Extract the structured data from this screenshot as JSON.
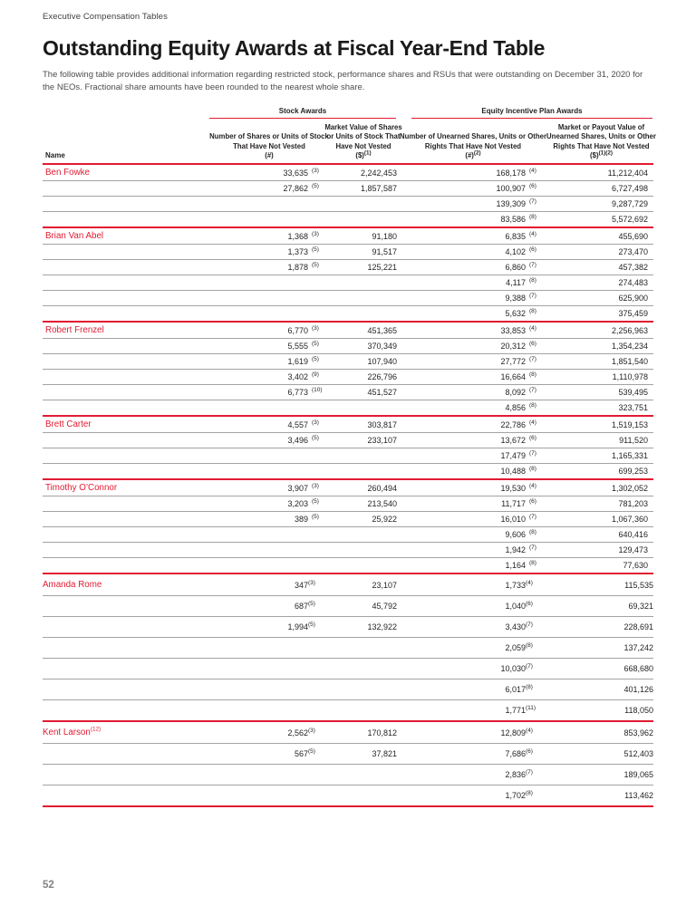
{
  "colors": {
    "accent_red": "#e11b32",
    "row_line": "#a3a3a3"
  },
  "page": {
    "eyebrow": "Executive Compensation Tables",
    "title": "Outstanding Equity Awards at Fiscal Year-End Table",
    "intro": "The following table provides additional information regarding restricted stock, performance shares and RSUs that were outstanding on December 31, 2020 for the NEOs. Fractional share amounts have been rounded to the nearest whole share.",
    "page_number": "52"
  },
  "table": {
    "group_headers": [
      {
        "label": "Stock Awards"
      },
      {
        "label": "Equity Incentive Plan Awards"
      }
    ],
    "columns": [
      {
        "label": "Name",
        "unit": "",
        "sup": ""
      },
      {
        "label": "Number of Shares or Units of Stock That Have Not Vested",
        "unit": "(#)",
        "sup": ""
      },
      {
        "label": "Market Value of Shares or Units of Stock That Have Not Vested",
        "unit": "($)",
        "sup": "(1)"
      },
      {
        "label": "Number of Unearned Shares, Units or Other Rights That Have Not Vested",
        "unit": "(#)",
        "sup": "(2)"
      },
      {
        "label": "Market or Payout Value of Unearned Shares, Units or Other Rights That Have Not Vested",
        "unit": "($)",
        "sup": "(1)(2)"
      }
    ],
    "groups": [
      {
        "name": "Ben Fowke",
        "name_sup": "",
        "tall": false,
        "rows": [
          {
            "c1": "33,635",
            "c1s": "(3)",
            "c2": "2,242,453",
            "c3": "168,178",
            "c3s": "(4)",
            "c4": "11,212,404"
          },
          {
            "c1": "27,862",
            "c1s": "(5)",
            "c2": "1,857,587",
            "c3": "100,907",
            "c3s": "(6)",
            "c4": "6,727,498"
          },
          {
            "c1": "",
            "c1s": "",
            "c2": "",
            "c3": "139,309",
            "c3s": "(7)",
            "c4": "9,287,729"
          },
          {
            "c1": "",
            "c1s": "",
            "c2": "",
            "c3": "83,586",
            "c3s": "(8)",
            "c4": "5,572,692"
          }
        ]
      },
      {
        "name": "Brian Van Abel",
        "name_sup": "",
        "tall": false,
        "rows": [
          {
            "c1": "1,368",
            "c1s": "(3)",
            "c2": "91,180",
            "c3": "6,835",
            "c3s": "(4)",
            "c4": "455,690"
          },
          {
            "c1": "1,373",
            "c1s": "(5)",
            "c2": "91,517",
            "c3": "4,102",
            "c3s": "(6)",
            "c4": "273,470"
          },
          {
            "c1": "1,878",
            "c1s": "(5)",
            "c2": "125,221",
            "c3": "6,860",
            "c3s": "(7)",
            "c4": "457,382"
          },
          {
            "c1": "",
            "c1s": "",
            "c2": "",
            "c3": "4,117",
            "c3s": "(8)",
            "c4": "274,483"
          },
          {
            "c1": "",
            "c1s": "",
            "c2": "",
            "c3": "9,388",
            "c3s": "(7)",
            "c4": "625,900"
          },
          {
            "c1": "",
            "c1s": "",
            "c2": "",
            "c3": "5,632",
            "c3s": "(8)",
            "c4": "375,459"
          }
        ]
      },
      {
        "name": "Robert Frenzel",
        "name_sup": "",
        "tall": false,
        "rows": [
          {
            "c1": "6,770",
            "c1s": "(3)",
            "c2": "451,365",
            "c3": "33,853",
            "c3s": "(4)",
            "c4": "2,256,963"
          },
          {
            "c1": "5,555",
            "c1s": "(5)",
            "c2": "370,349",
            "c3": "20,312",
            "c3s": "(6)",
            "c4": "1,354,234"
          },
          {
            "c1": "1,619",
            "c1s": "(5)",
            "c2": "107,940",
            "c3": "27,772",
            "c3s": "(7)",
            "c4": "1,851,540"
          },
          {
            "c1": "3,402",
            "c1s": "(9)",
            "c2": "226,796",
            "c3": "16,664",
            "c3s": "(8)",
            "c4": "1,110,978"
          },
          {
            "c1": "6,773",
            "c1s": "(10)",
            "c2": "451,527",
            "c3": "8,092",
            "c3s": "(7)",
            "c4": "539,495"
          },
          {
            "c1": "",
            "c1s": "",
            "c2": "",
            "c3": "4,856",
            "c3s": "(8)",
            "c4": "323,751"
          }
        ]
      },
      {
        "name": "Brett Carter",
        "name_sup": "",
        "tall": false,
        "rows": [
          {
            "c1": "4,557",
            "c1s": "(3)",
            "c2": "303,817",
            "c3": "22,786",
            "c3s": "(4)",
            "c4": "1,519,153"
          },
          {
            "c1": "3,496",
            "c1s": "(5)",
            "c2": "233,107",
            "c3": "13,672",
            "c3s": "(6)",
            "c4": "911,520"
          },
          {
            "c1": "",
            "c1s": "",
            "c2": "",
            "c3": "17,479",
            "c3s": "(7)",
            "c4": "1,165,331"
          },
          {
            "c1": "",
            "c1s": "",
            "c2": "",
            "c3": "10,488",
            "c3s": "(8)",
            "c4": "699,253"
          }
        ]
      },
      {
        "name": "Timothy O’Connor",
        "name_sup": "",
        "tall": false,
        "rows": [
          {
            "c1": "3,907",
            "c1s": "(3)",
            "c2": "260,494",
            "c3": "19,530",
            "c3s": "(4)",
            "c4": "1,302,052"
          },
          {
            "c1": "3,203",
            "c1s": "(5)",
            "c2": "213,540",
            "c3": "11,717",
            "c3s": "(6)",
            "c4": "781,203"
          },
          {
            "c1": "389",
            "c1s": "(5)",
            "c2": "25,922",
            "c3": "16,010",
            "c3s": "(7)",
            "c4": "1,067,360"
          },
          {
            "c1": "",
            "c1s": "",
            "c2": "",
            "c3": "9,606",
            "c3s": "(8)",
            "c4": "640,416"
          },
          {
            "c1": "",
            "c1s": "",
            "c2": "",
            "c3": "1,942",
            "c3s": "(7)",
            "c4": "129,473"
          },
          {
            "c1": "",
            "c1s": "",
            "c2": "",
            "c3": "1,164",
            "c3s": "(8)",
            "c4": "77,630"
          }
        ]
      },
      {
        "name": "Amanda Rome",
        "name_sup": "",
        "tall": true,
        "rows": [
          {
            "c1": "347",
            "c1s": "(3)",
            "c2": "23,107",
            "c3": "1,733",
            "c3s": "(4)",
            "c4": "115,535"
          },
          {
            "c1": "687",
            "c1s": "(5)",
            "c2": "45,792",
            "c3": "1,040",
            "c3s": "(6)",
            "c4": "69,321"
          },
          {
            "c1": "1,994",
            "c1s": "(5)",
            "c2": "132,922",
            "c3": "3,430",
            "c3s": "(7)",
            "c4": "228,691"
          },
          {
            "c1": "",
            "c1s": "",
            "c2": "",
            "c3": "2,059",
            "c3s": "(8)",
            "c4": "137,242"
          },
          {
            "c1": "",
            "c1s": "",
            "c2": "",
            "c3": "10,030",
            "c3s": "(7)",
            "c4": "668,680"
          },
          {
            "c1": "",
            "c1s": "",
            "c2": "",
            "c3": "6,017",
            "c3s": "(8)",
            "c4": "401,126"
          },
          {
            "c1": "",
            "c1s": "",
            "c2": "",
            "c3": "1,771",
            "c3s": "(11)",
            "c4": "118,050"
          }
        ]
      },
      {
        "name": "Kent Larson",
        "name_sup": "(12)",
        "tall": true,
        "rows": [
          {
            "c1": "2,562",
            "c1s": "(3)",
            "c2": "170,812",
            "c3": "12,809",
            "c3s": "(4)",
            "c4": "853,962"
          },
          {
            "c1": "567",
            "c1s": "(5)",
            "c2": "37,821",
            "c3": "7,686",
            "c3s": "(6)",
            "c4": "512,403"
          },
          {
            "c1": "",
            "c1s": "",
            "c2": "",
            "c3": "2,836",
            "c3s": "(7)",
            "c4": "189,065"
          },
          {
            "c1": "",
            "c1s": "",
            "c2": "",
            "c3": "1,702",
            "c3s": "(8)",
            "c4": "113,462"
          }
        ]
      }
    ]
  }
}
